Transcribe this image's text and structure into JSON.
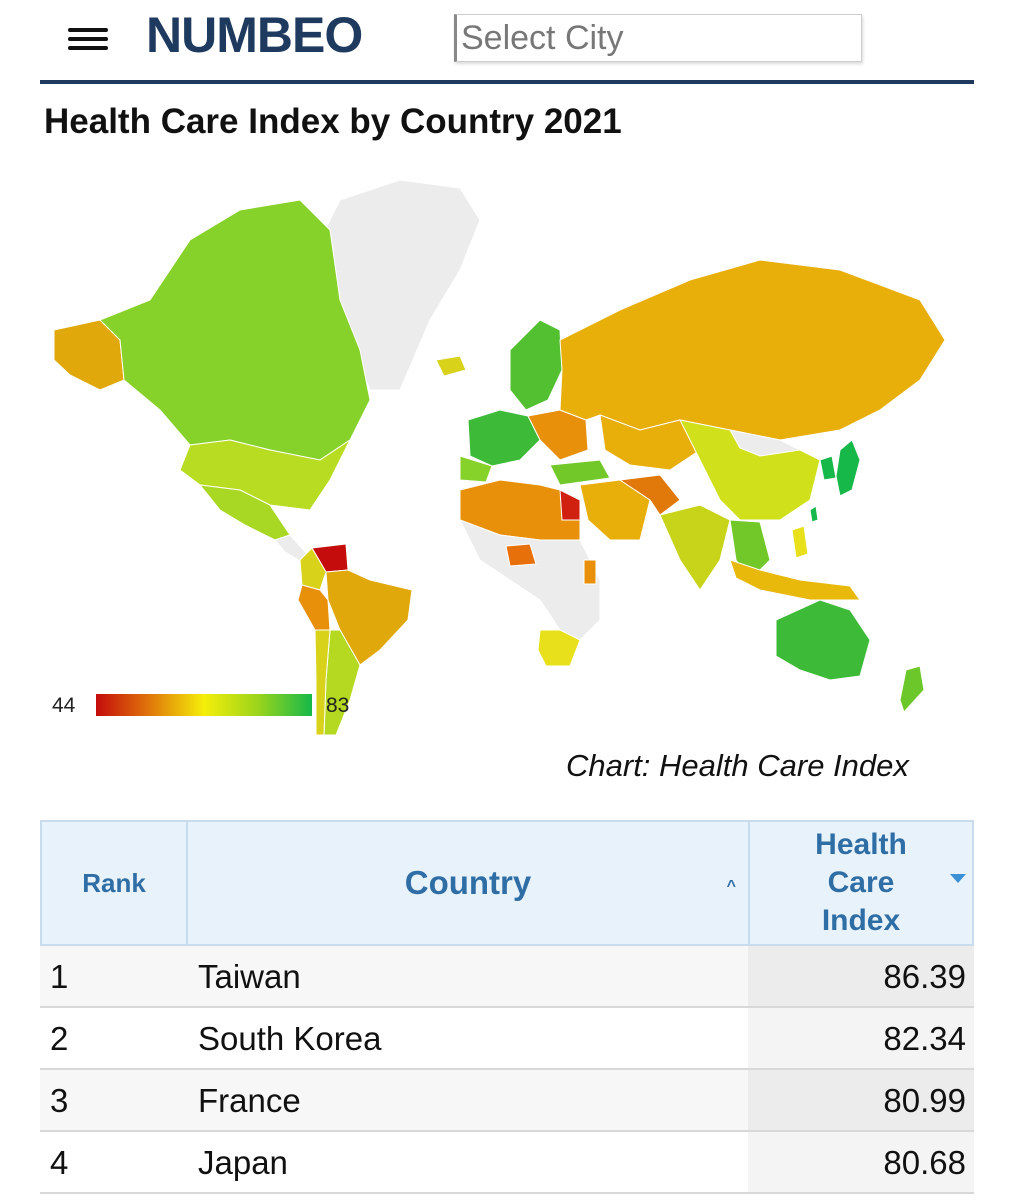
{
  "header": {
    "logo": "NUMBEO",
    "search_placeholder": "Select City"
  },
  "page_title": "Health Care Index by Country 2021",
  "map": {
    "legend_min": "44",
    "legend_max": "83",
    "caption": "Chart: Health Care Index",
    "colors": {
      "low": "#c40c0c",
      "mid_low": "#e0780a",
      "mid": "#f5ee0a",
      "mid_high": "#9bd41c",
      "high": "#16b84a",
      "no_data": "#ececec"
    }
  },
  "table": {
    "headers": {
      "rank": "Rank",
      "country": "Country",
      "index_line1": "Health",
      "index_line2": "Care",
      "index_line3": "Index"
    },
    "rows": [
      {
        "rank": "1",
        "country": "Taiwan",
        "index": "86.39"
      },
      {
        "rank": "2",
        "country": "South Korea",
        "index": "82.34"
      },
      {
        "rank": "3",
        "country": "France",
        "index": "80.99"
      },
      {
        "rank": "4",
        "country": "Japan",
        "index": "80.68"
      }
    ]
  }
}
